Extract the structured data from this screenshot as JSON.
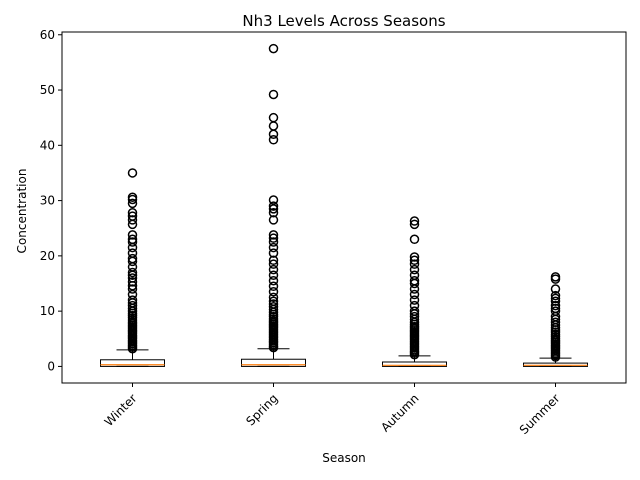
{
  "chart_data": {
    "type": "box",
    "title": "Nh3 Levels Across Seasons",
    "xlabel": "Season",
    "ylabel": "Concentration",
    "ylim": [
      -3,
      60.5
    ],
    "yticks": [
      0,
      10,
      20,
      30,
      40,
      50,
      60
    ],
    "categories": [
      "Winter",
      "Spring",
      "Autumn",
      "Summer"
    ],
    "boxes": [
      {
        "category": "Winter",
        "whisker_low": 0,
        "q1": 0,
        "median": 0.3,
        "q3": 1.2,
        "whisker_high": 3.0,
        "outliers": [
          3.2,
          3.5,
          3.8,
          4.1,
          4.4,
          4.7,
          5.0,
          5.3,
          5.6,
          5.9,
          6.2,
          6.5,
          6.8,
          7.1,
          7.4,
          7.7,
          8.0,
          8.4,
          8.8,
          9.2,
          9.6,
          10.0,
          10.5,
          11.0,
          11.5,
          12.0,
          13.0,
          14.0,
          14.6,
          15.3,
          16.0,
          16.5,
          17.0,
          18.0,
          19.0,
          19.5,
          20.5,
          21.5,
          22.5,
          23.0,
          23.8,
          25.7,
          26.5,
          27.2,
          27.8,
          29.5,
          30.2,
          30.6,
          35.0
        ]
      },
      {
        "category": "Spring",
        "whisker_low": 0,
        "q1": 0,
        "median": 0.3,
        "q3": 1.3,
        "whisker_high": 3.2,
        "outliers": [
          3.4,
          3.7,
          4.0,
          4.3,
          4.6,
          4.9,
          5.2,
          5.5,
          5.8,
          6.1,
          6.4,
          6.7,
          7.0,
          7.3,
          7.6,
          7.9,
          8.2,
          8.6,
          9.0,
          9.4,
          9.8,
          10.3,
          10.8,
          11.3,
          11.8,
          12.5,
          13.5,
          14.5,
          15.5,
          16.5,
          17.5,
          18.5,
          19.2,
          20.5,
          21.5,
          22.5,
          23.2,
          23.8,
          26.5,
          27.8,
          28.5,
          29.0,
          30.1,
          41.0,
          42.0,
          43.5,
          45.0,
          49.2,
          57.5
        ]
      },
      {
        "category": "Autumn",
        "whisker_low": 0,
        "q1": 0,
        "median": 0.2,
        "q3": 0.8,
        "whisker_high": 1.9,
        "outliers": [
          2.1,
          2.4,
          2.7,
          3.0,
          3.3,
          3.6,
          3.9,
          4.2,
          4.5,
          4.8,
          5.1,
          5.4,
          5.7,
          6.0,
          6.3,
          6.6,
          6.9,
          7.2,
          7.6,
          8.0,
          8.5,
          9.0,
          9.5,
          10.0,
          11.0,
          12.0,
          13.0,
          14.0,
          15.0,
          15.5,
          16.5,
          17.5,
          18.5,
          19.2,
          19.8,
          23.0,
          25.7,
          26.3
        ]
      },
      {
        "category": "Summer",
        "whisker_low": 0,
        "q1": 0,
        "median": 0.2,
        "q3": 0.6,
        "whisker_high": 1.5,
        "outliers": [
          1.7,
          2.0,
          2.3,
          2.6,
          2.9,
          3.2,
          3.5,
          3.8,
          4.1,
          4.4,
          4.7,
          5.0,
          5.4,
          5.8,
          6.2,
          6.6,
          7.0,
          7.5,
          8.0,
          8.5,
          9.0,
          10.0,
          10.5,
          11.0,
          11.8,
          12.3,
          12.8,
          14.0,
          15.8,
          16.2
        ]
      }
    ],
    "colors": {
      "box": "#000000",
      "median": "#ff7f0e",
      "outlier": "#000000"
    }
  }
}
